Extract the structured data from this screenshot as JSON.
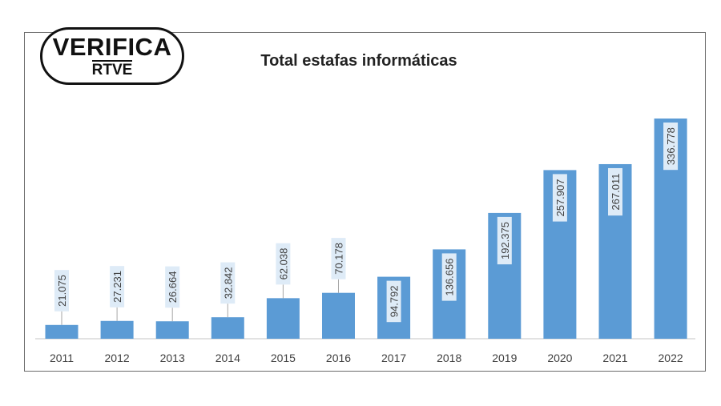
{
  "logo": {
    "line1": "VERIFICA",
    "line2": "RTVE"
  },
  "chart_data": {
    "type": "bar",
    "title": "Total estafas informáticas",
    "categories": [
      "2011",
      "2012",
      "2013",
      "2014",
      "2015",
      "2016",
      "2017",
      "2018",
      "2019",
      "2020",
      "2021",
      "2022"
    ],
    "values": [
      21075,
      27231,
      26664,
      32842,
      62038,
      70178,
      94792,
      136656,
      192375,
      257907,
      267011,
      336778
    ],
    "labels": [
      "21.075",
      "27.231",
      "26.664",
      "32.842",
      "62.038",
      "70.178",
      "94.792",
      "136.656",
      "192.375",
      "257.907",
      "267.011",
      "336.778"
    ],
    "xlabel": "",
    "ylabel": "",
    "ylim": [
      0,
      336778
    ],
    "grid": false,
    "bar_color": "#5b9bd5",
    "label_bg": "#deebf7"
  }
}
